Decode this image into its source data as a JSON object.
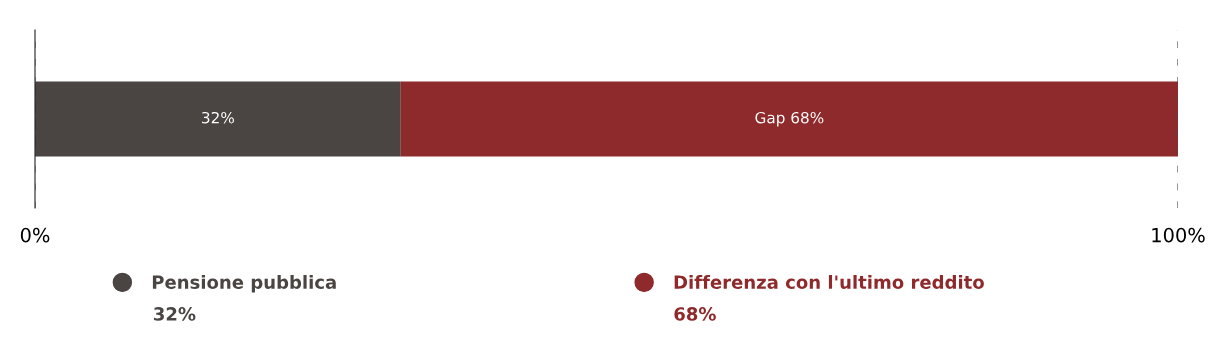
{
  "chart_data": {
    "type": "bar",
    "orientation": "horizontal",
    "stacked": true,
    "categories": [
      null
    ],
    "series": [
      {
        "name": "Pensione pubblica",
        "color": "#4a4543",
        "values": [
          32
        ],
        "value_labels": [
          "32%"
        ]
      },
      {
        "name": "Differenza con l'ultimo reddito",
        "color": "#8f2a2c",
        "values": [
          68
        ],
        "value_labels": [
          "Gap 68%"
        ]
      }
    ],
    "xlim": [
      0,
      100
    ],
    "xticks": [
      {
        "value": 0,
        "label": "0%"
      },
      {
        "value": 100,
        "label": "100%"
      }
    ],
    "grid": "x",
    "legend": "bottom",
    "annotations": [
      "32%",
      "68%"
    ]
  }
}
